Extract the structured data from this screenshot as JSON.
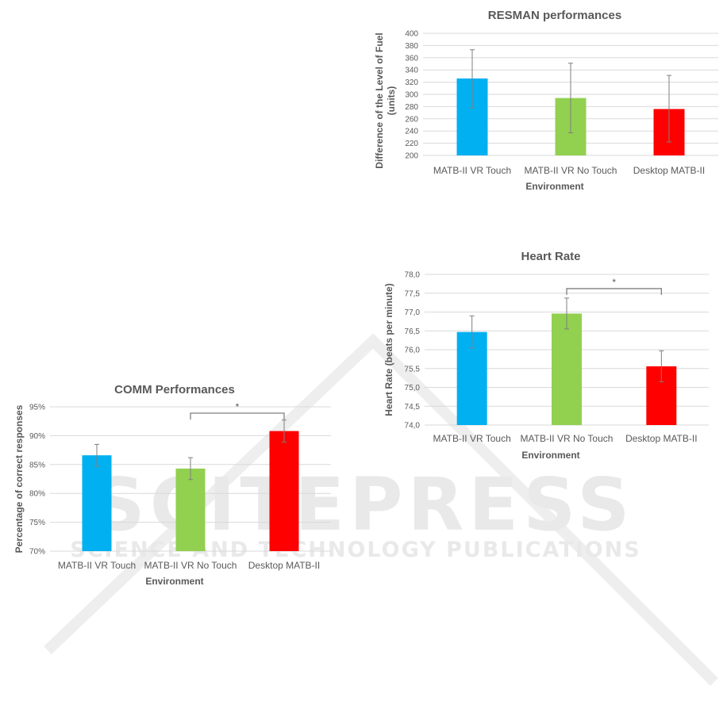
{
  "watermark": {
    "logo": "SCITEPRESS",
    "subtitle": "SCIENCE AND TECHNOLOGY PUBLICATIONS"
  },
  "colors": {
    "touch": "#00b0f0",
    "notouch": "#92d050",
    "desktop": "#ff0000",
    "grid": "#d9d9d9",
    "error": "#7f7f7f"
  },
  "chart_data": [
    {
      "type": "bar",
      "title": "RESMAN performances",
      "xlabel": "Environment",
      "ylabel": "Difference of the Level of Fuel (units)",
      "categories": [
        "MATB-II VR Touch",
        "MATB-II VR No Touch",
        "Desktop MATB-II"
      ],
      "values": [
        326,
        294,
        276
      ],
      "error_low": [
        278,
        237,
        222
      ],
      "error_high": [
        373,
        351,
        331
      ],
      "ylim": [
        200,
        400
      ],
      "yticks": [
        "200",
        "220",
        "240",
        "260",
        "280",
        "300",
        "320",
        "340",
        "360",
        "380",
        "400"
      ],
      "grid": true,
      "significance": []
    },
    {
      "type": "bar",
      "title": "Heart Rate",
      "xlabel": "Environment",
      "ylabel": "Heart Rate (beats per minute)",
      "categories": [
        "MATB-II VR Touch",
        "MATB-II VR No Touch",
        "Desktop MATB-II"
      ],
      "values": [
        76.47,
        76.96,
        75.56
      ],
      "error_low": [
        76.05,
        76.55,
        75.15
      ],
      "error_high": [
        76.9,
        77.37,
        75.97
      ],
      "ylim": [
        74,
        78
      ],
      "yticks": [
        "74,0",
        "74,5",
        "75,0",
        "75,5",
        "76,0",
        "76,5",
        "77,0",
        "77,5",
        "78,0"
      ],
      "grid": true,
      "significance": [
        {
          "from": 1,
          "to": 2,
          "label": "*"
        }
      ]
    },
    {
      "type": "bar",
      "title": "COMM Performances",
      "xlabel": "Environment",
      "ylabel": "Percentage of correct responses",
      "categories": [
        "MATB-II VR Touch",
        "MATB-II VR No Touch",
        "Desktop MATB-II"
      ],
      "values": [
        86.6,
        84.3,
        90.8
      ],
      "error_low": [
        84.7,
        82.4,
        88.9
      ],
      "error_high": [
        88.5,
        86.2,
        92.7
      ],
      "ylim": [
        70,
        95
      ],
      "yticks": [
        "70%",
        "75%",
        "80%",
        "85%",
        "90%",
        "95%"
      ],
      "grid": true,
      "significance": [
        {
          "from": 1,
          "to": 2,
          "label": "*"
        }
      ]
    }
  ]
}
